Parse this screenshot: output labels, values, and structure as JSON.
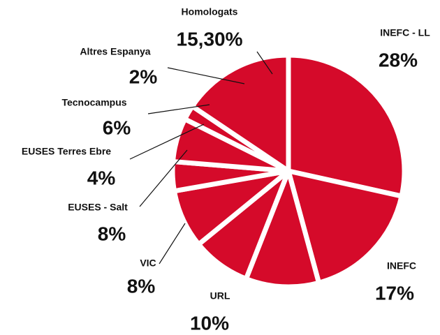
{
  "chart_data": {
    "type": "pie",
    "categories": [
      "INEFC - LL",
      "INEFC",
      "URL",
      "VIC",
      "EUSES - Salt",
      "EUSES Terres Ebre",
      "Tecnocampus",
      "Altres Espanya",
      "Homologats"
    ],
    "values": [
      28,
      17,
      10,
      8,
      8,
      4,
      6,
      2,
      15.3
    ],
    "value_labels": [
      "28%",
      "17%",
      "10%",
      "8%",
      "8%",
      "4%",
      "6%",
      "2%",
      "15,30%"
    ],
    "color": "#d50a2a"
  }
}
